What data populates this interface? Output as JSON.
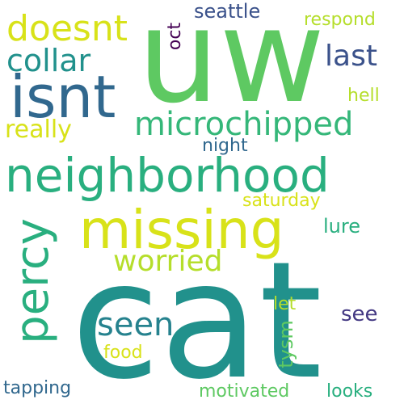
{
  "palette": {
    "yellow": "#d8e219",
    "yellow_green": "#b5de2b",
    "light_green": "#5ec962",
    "green": "#35b779",
    "teal_green": "#29af7f",
    "teal": "#21918c",
    "blue_teal": "#26828e",
    "blue": "#31688e",
    "dark_blue": "#3b528b",
    "indigo": "#443983",
    "purple": "#440154"
  },
  "words": [
    {
      "key": "cat",
      "text": "cat",
      "color": "#21918c"
    },
    {
      "key": "uw",
      "text": "uw",
      "color": "#5ec962"
    },
    {
      "key": "neighborhood",
      "text": "neighborhood",
      "color": "#29af7f"
    },
    {
      "key": "missing",
      "text": "missing",
      "color": "#d8e219"
    },
    {
      "key": "isnt",
      "text": "isnt",
      "color": "#31688e"
    },
    {
      "key": "percy",
      "text": "percy",
      "color": "#29af7f"
    },
    {
      "key": "microchipped",
      "text": "microchipped",
      "color": "#35b779"
    },
    {
      "key": "doesnt",
      "text": "doesnt",
      "color": "#d8e219"
    },
    {
      "key": "collar",
      "text": "collar",
      "color": "#21918c"
    },
    {
      "key": "last",
      "text": "last",
      "color": "#3b528b"
    },
    {
      "key": "seen",
      "text": "seen",
      "color": "#26828e"
    },
    {
      "key": "worried",
      "text": "worried",
      "color": "#b5de2b"
    },
    {
      "key": "really",
      "text": "really",
      "color": "#d8e219"
    },
    {
      "key": "night",
      "text": "night",
      "color": "#31688e"
    },
    {
      "key": "saturday",
      "text": "saturday",
      "color": "#d8e219"
    },
    {
      "key": "lure",
      "text": "lure",
      "color": "#29af7f"
    },
    {
      "key": "let",
      "text": "let",
      "color": "#b5de2b"
    },
    {
      "key": "see",
      "text": "see",
      "color": "#443983"
    },
    {
      "key": "tysm",
      "text": "tysm",
      "color": "#5ec962"
    },
    {
      "key": "food",
      "text": "food",
      "color": "#d8e219"
    },
    {
      "key": "tapping",
      "text": "tapping",
      "color": "#31688e"
    },
    {
      "key": "motivated",
      "text": "motivated",
      "color": "#5ec962"
    },
    {
      "key": "looks",
      "text": "looks",
      "color": "#29af7f"
    },
    {
      "key": "seattle",
      "text": "seattle",
      "color": "#3b528b"
    },
    {
      "key": "respond",
      "text": "respond",
      "color": "#b5de2b"
    },
    {
      "key": "oct",
      "text": "oct",
      "color": "#440154"
    },
    {
      "key": "hell",
      "text": "hell",
      "color": "#b5de2b"
    }
  ]
}
